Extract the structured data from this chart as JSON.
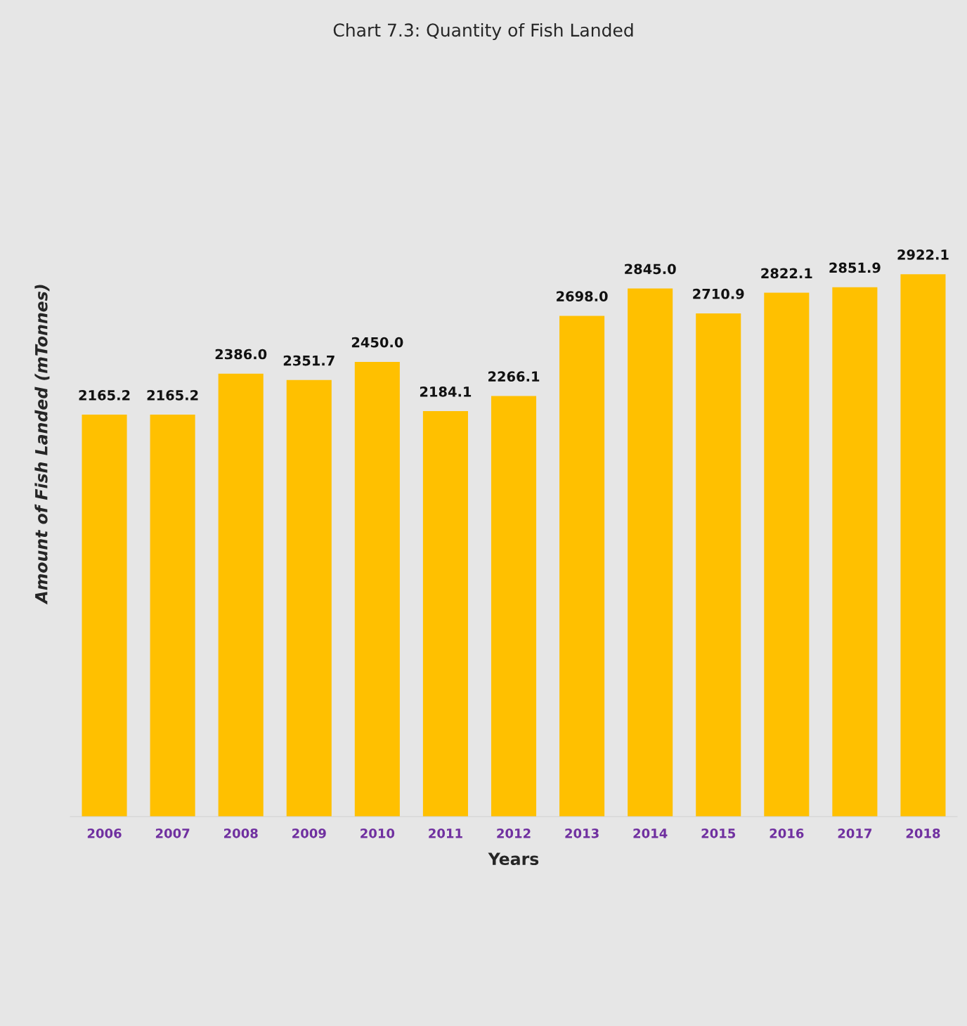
{
  "chart_data": {
    "type": "bar",
    "title": "Chart 7.3: Quantity of Fish Landed",
    "xlabel": "Years",
    "ylabel": "Amount of Fish Landed (mTonnes)",
    "categories": [
      "2006",
      "2007",
      "2008",
      "2009",
      "2010",
      "2011",
      "2012",
      "2013",
      "2014",
      "2015",
      "2016",
      "2017",
      "2018"
    ],
    "values": [
      2165.2,
      2165.2,
      2386.0,
      2351.7,
      2450.0,
      2184.1,
      2266.1,
      2698.0,
      2845.0,
      2710.9,
      2822.1,
      2851.9,
      2922.1
    ],
    "value_labels": [
      "2165.2",
      "2165.2",
      "2386.0",
      "2351.7",
      "2450.0",
      "2184.1",
      "2266.1",
      "2698.0",
      "2845.0",
      "2710.9",
      "2822.1",
      "2851.9",
      "2922.1"
    ],
    "color": "#ffc000",
    "grid": false,
    "legend": false
  }
}
